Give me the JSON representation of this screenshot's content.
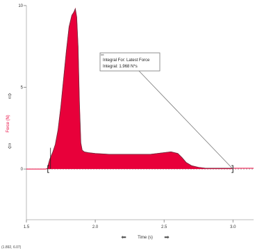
{
  "chart_data": {
    "type": "area",
    "title": "",
    "xlabel": "Time (s)",
    "ylabel": "Force (N)",
    "xlim": [
      1.5,
      3.15
    ],
    "ylim": [
      -3.1,
      10
    ],
    "x_ticks": [
      "1.5",
      "2.0",
      "2.5",
      "3.0"
    ],
    "x_tick_values": [
      1.5,
      2.0,
      2.5,
      3.0
    ],
    "y_ticks": [
      "10",
      "5",
      "0"
    ],
    "y_tick_values": [
      10,
      5,
      0
    ],
    "grid": false,
    "integral_range": [
      1.655,
      3.0
    ],
    "series": [
      {
        "name": "Latest Force",
        "color": "#e8003a",
        "x": [
          1.5,
          1.64,
          1.655,
          1.66,
          1.67,
          1.69,
          1.71,
          1.73,
          1.75,
          1.77,
          1.79,
          1.81,
          1.83,
          1.845,
          1.855,
          1.865,
          1.875,
          1.885,
          1.895,
          1.905,
          1.92,
          1.95,
          2.0,
          2.1,
          2.2,
          2.3,
          2.4,
          2.5,
          2.55,
          2.6,
          2.63,
          2.66,
          2.7,
          2.75,
          2.8,
          2.9,
          3.0,
          3.15
        ],
        "y": [
          0.0,
          0.0,
          0.05,
          0.3,
          0.6,
          1.0,
          1.5,
          2.4,
          3.8,
          5.5,
          7.2,
          8.7,
          9.4,
          9.6,
          9.8,
          9.3,
          7.5,
          4.0,
          1.6,
          1.15,
          1.05,
          1.0,
          0.95,
          0.9,
          0.9,
          0.9,
          0.9,
          1.0,
          1.05,
          0.95,
          0.7,
          0.4,
          0.2,
          0.1,
          0.05,
          0.05,
          0.05,
          0.05
        ]
      }
    ],
    "annotation": {
      "tag": "Int:",
      "line1": "Integral For: Latest Force",
      "line2": "Integral: 1.968 N*s"
    }
  },
  "cursor_readout": "(1.892, 6.07)"
}
